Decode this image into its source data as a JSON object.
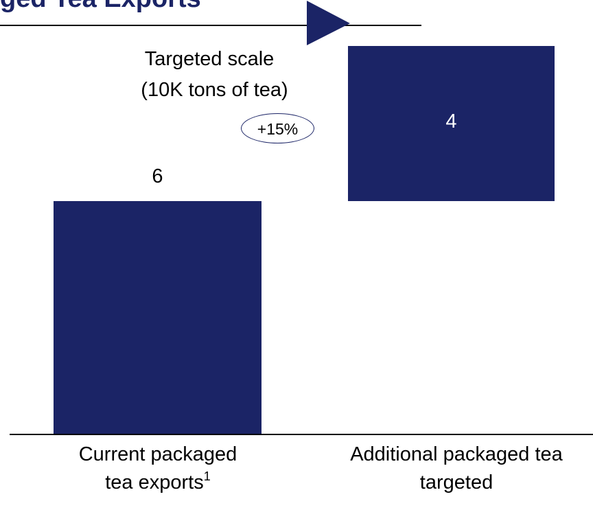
{
  "title": "ged Tea Exports",
  "annotation": {
    "line1": "Targeted scale",
    "line2": "(10K tons of tea)",
    "cagr": "+15%"
  },
  "colors": {
    "bar": "#1b2466",
    "text": "#000000"
  },
  "chart_data": {
    "type": "bar",
    "subtype": "waterfall",
    "categories": [
      "Current packaged tea exports",
      "Additional packaged tea targeted"
    ],
    "category_footnotes": [
      "1",
      ""
    ],
    "values": [
      6,
      4
    ],
    "value_labels": [
      "6",
      "4"
    ],
    "unit": "10K tons of tea",
    "cumulative_total": 10,
    "ylim": [
      0,
      10
    ],
    "grid": false,
    "legend": "none"
  }
}
